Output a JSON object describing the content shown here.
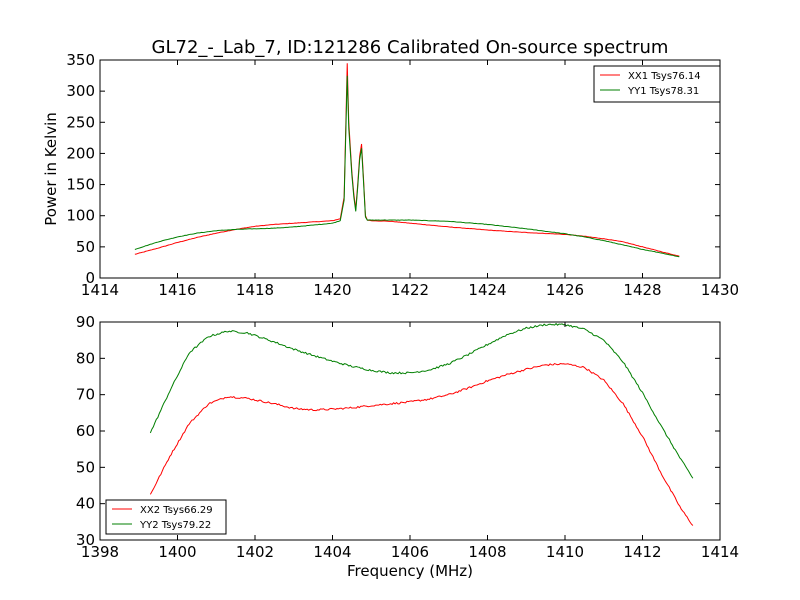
{
  "title": "GL72_-_Lab_7, ID:121286 Calibrated On-source spectrum",
  "colors": {
    "red": "#ff0000",
    "green": "#007f00"
  },
  "chart_data": [
    {
      "type": "line",
      "ylabel": "Power in Kelvin",
      "xlabel": "",
      "xlim": [
        1414,
        1430
      ],
      "ylim": [
        0,
        350
      ],
      "xticks": [
        1414,
        1416,
        1418,
        1420,
        1422,
        1424,
        1426,
        1428,
        1430
      ],
      "yticks": [
        0,
        50,
        100,
        150,
        200,
        250,
        300,
        350
      ],
      "legend_position": "top-right",
      "series": [
        {
          "name": "XX1 Tsys76.14",
          "color": "#ff0000",
          "x": [
            1414.9,
            1415.5,
            1416.0,
            1416.5,
            1417.0,
            1417.5,
            1418.0,
            1418.5,
            1419.0,
            1419.5,
            1420.0,
            1420.2,
            1420.3,
            1420.38,
            1420.42,
            1420.5,
            1420.55,
            1420.6,
            1420.65,
            1420.7,
            1420.75,
            1420.8,
            1420.85,
            1420.9,
            1421.0,
            1421.5,
            1422.0,
            1423.0,
            1424.0,
            1425.0,
            1426.0,
            1426.5,
            1427.0,
            1427.5,
            1428.0,
            1428.5,
            1428.95
          ],
          "y": [
            38,
            48,
            57,
            65,
            72,
            78,
            83,
            86,
            88,
            90,
            92,
            95,
            130,
            345,
            250,
            170,
            135,
            110,
            150,
            195,
            215,
            160,
            100,
            93,
            92,
            91,
            88,
            82,
            77,
            73,
            70,
            67,
            63,
            58,
            50,
            42,
            35
          ]
        },
        {
          "name": "YY1 Tsys78.31",
          "color": "#007f00",
          "x": [
            1414.9,
            1415.5,
            1416.0,
            1416.5,
            1417.0,
            1417.5,
            1418.0,
            1418.5,
            1419.0,
            1419.5,
            1420.0,
            1420.2,
            1420.3,
            1420.38,
            1420.42,
            1420.5,
            1420.55,
            1420.6,
            1420.65,
            1420.7,
            1420.75,
            1420.8,
            1420.85,
            1420.9,
            1421.0,
            1421.5,
            1422.0,
            1423.0,
            1424.0,
            1425.0,
            1426.0,
            1426.5,
            1427.0,
            1427.5,
            1428.0,
            1428.5,
            1428.95
          ],
          "y": [
            46,
            58,
            66,
            72,
            76,
            78,
            79,
            80,
            82,
            85,
            88,
            92,
            125,
            325,
            240,
            165,
            130,
            107,
            145,
            190,
            208,
            155,
            98,
            93,
            93,
            93,
            93,
            91,
            86,
            79,
            71,
            66,
            60,
            53,
            46,
            40,
            34
          ]
        }
      ]
    },
    {
      "type": "line",
      "ylabel": "",
      "xlabel": "Frequency (MHz)",
      "xlim": [
        1398,
        1414
      ],
      "ylim": [
        30,
        90
      ],
      "xticks": [
        1398,
        1400,
        1402,
        1404,
        1406,
        1408,
        1410,
        1412,
        1414
      ],
      "yticks": [
        30,
        40,
        50,
        60,
        70,
        80,
        90
      ],
      "legend_position": "bottom-left",
      "series": [
        {
          "name": "XX2 Tsys66.29",
          "color": "#ff0000",
          "x": [
            1399.3,
            1399.8,
            1400.3,
            1400.8,
            1401.3,
            1401.8,
            1402.5,
            1403.0,
            1403.5,
            1404.0,
            1404.5,
            1405.0,
            1405.5,
            1406.0,
            1406.5,
            1407.0,
            1407.5,
            1408.0,
            1408.5,
            1409.0,
            1409.5,
            1410.0,
            1410.5,
            1411.0,
            1411.5,
            1412.0,
            1412.5,
            1413.0,
            1413.3
          ],
          "y": [
            42.5,
            53,
            62,
            67.5,
            69.5,
            69,
            67.5,
            66.2,
            65.8,
            66,
            66.4,
            67,
            67.5,
            68,
            68.8,
            70,
            71.8,
            73.8,
            75.5,
            77,
            78.2,
            78.5,
            77.5,
            74,
            67.5,
            58.5,
            48,
            38.5,
            34
          ]
        },
        {
          "name": "YY2 Tsys79.22",
          "color": "#007f00",
          "x": [
            1399.3,
            1399.8,
            1400.3,
            1400.8,
            1401.3,
            1401.8,
            1402.5,
            1403.0,
            1403.5,
            1404.0,
            1404.5,
            1405.0,
            1405.5,
            1406.0,
            1406.5,
            1407.0,
            1407.5,
            1408.0,
            1408.5,
            1409.0,
            1409.5,
            1410.0,
            1410.5,
            1411.0,
            1411.5,
            1412.0,
            1412.5,
            1413.0,
            1413.3
          ],
          "y": [
            59.5,
            71,
            81.5,
            86,
            87.5,
            87,
            84.5,
            82.5,
            80.8,
            79.2,
            77.8,
            76.7,
            76,
            76,
            76.8,
            78.5,
            81,
            83.8,
            86.5,
            88.3,
            89.3,
            89.3,
            88,
            85,
            79,
            70.5,
            61,
            52,
            47
          ]
        }
      ]
    }
  ]
}
